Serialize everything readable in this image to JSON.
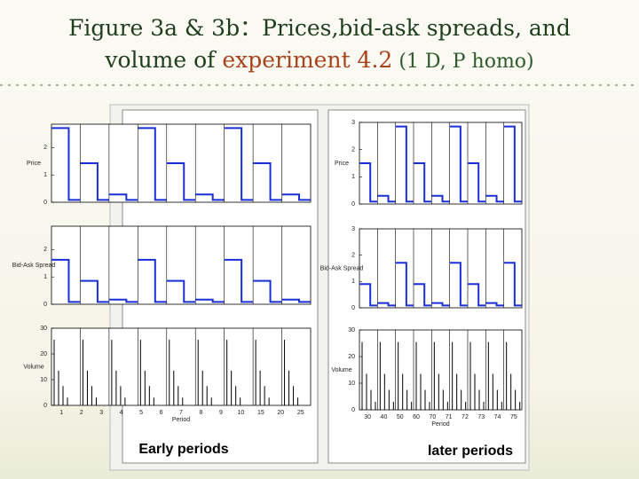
{
  "title": {
    "line1": "Figure 3a & 3b：Prices,bid-ask spreads, and",
    "line2_prefix": "volume of ",
    "line2_highlight": "experiment 4.2",
    "line2_suffix": " (1 D, P homo)"
  },
  "figures": [
    {
      "caption": "Early periods",
      "x_label": "Period",
      "x_ticks": [
        "1",
        "2",
        "3",
        "4",
        "5",
        "6",
        "7",
        "8",
        "9",
        "10",
        "15",
        "20",
        "25"
      ],
      "panels": [
        {
          "y_label": "Price",
          "y_ticks": [
            "0",
            "1",
            "2"
          ]
        },
        {
          "y_label": "Bid-Ask Spread",
          "y_ticks": [
            "0",
            "1",
            "2"
          ]
        },
        {
          "y_label": "Volume",
          "y_ticks": [
            "0",
            "10",
            "20",
            "30"
          ]
        }
      ]
    },
    {
      "caption": "later periods",
      "x_label": "Period",
      "x_ticks": [
        "30",
        "40",
        "50",
        "60",
        "70",
        "71",
        "72",
        "73",
        "74",
        "75"
      ],
      "panels": [
        {
          "y_label": "Price",
          "y_ticks": [
            "0",
            "1",
            "2",
            "3"
          ]
        },
        {
          "y_label": "Bid-Ask Spread",
          "y_ticks": [
            "0",
            "1",
            "2",
            "3"
          ]
        },
        {
          "y_label": "Volume",
          "y_ticks": [
            "0",
            "10",
            "20",
            "30"
          ]
        }
      ]
    }
  ]
}
